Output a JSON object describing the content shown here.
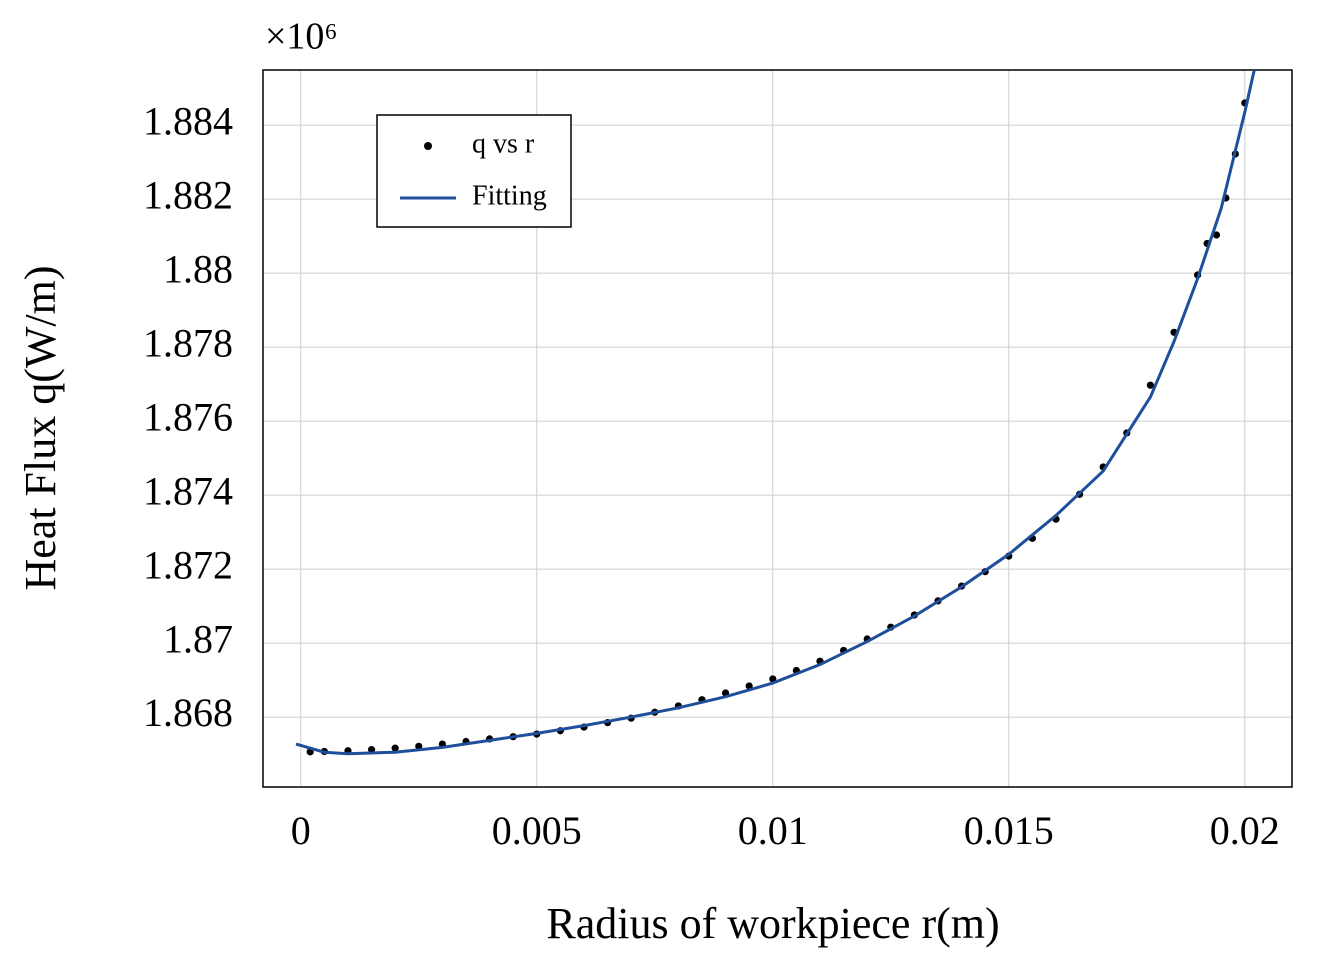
{
  "chart_data": {
    "type": "scatter",
    "y_multiplier": "×10⁶",
    "xlabel": "Radius of workpiece r(m)",
    "ylabel": "Heat Flux q(W/m)",
    "xlim": [
      -0.0008,
      0.021
    ],
    "ylim": [
      1.86611,
      1.88549
    ],
    "xticks": [
      0,
      0.005,
      0.01,
      0.015,
      0.02
    ],
    "yticks": [
      1.868,
      1.87,
      1.872,
      1.874,
      1.876,
      1.878,
      1.88,
      1.882,
      1.884
    ],
    "grid": true,
    "legend": "upper left",
    "series": [
      {
        "name": "q vs r",
        "type": "scatter",
        "color": "#000000",
        "x": [
          0.0002,
          0.0005,
          0.001,
          0.0015,
          0.002,
          0.0025,
          0.003,
          0.0035,
          0.004,
          0.0045,
          0.005,
          0.0055,
          0.006,
          0.0065,
          0.007,
          0.0075,
          0.008,
          0.0085,
          0.009,
          0.0095,
          0.01,
          0.0105,
          0.011,
          0.0115,
          0.012,
          0.0125,
          0.013,
          0.0135,
          0.014,
          0.0145,
          0.015,
          0.0155,
          0.016,
          0.0165,
          0.017,
          0.0175,
          0.018,
          0.0185,
          0.019,
          0.0192,
          0.0194,
          0.0196,
          0.0198,
          0.02
        ],
        "values": [
          1.86706,
          1.86707,
          1.86709,
          1.86712,
          1.86716,
          1.86721,
          1.86727,
          1.86734,
          1.86741,
          1.86747,
          1.86754,
          1.86763,
          1.86773,
          1.86785,
          1.86797,
          1.86813,
          1.8683,
          1.86847,
          1.86865,
          1.86884,
          1.86903,
          1.86926,
          1.86951,
          1.8698,
          1.87011,
          1.87043,
          1.87076,
          1.87114,
          1.87154,
          1.87193,
          1.87235,
          1.87283,
          1.87335,
          1.87402,
          1.87476,
          1.87568,
          1.87697,
          1.8784,
          1.87995,
          1.8808,
          1.88103,
          1.88203,
          1.88322,
          1.8846
        ]
      },
      {
        "name": "Fitting",
        "type": "line",
        "color": "#1f4e9a",
        "x": [
          -0.0001,
          0.0005,
          0.001,
          0.002,
          0.003,
          0.004,
          0.005,
          0.006,
          0.007,
          0.008,
          0.009,
          0.01,
          0.011,
          0.012,
          0.013,
          0.014,
          0.015,
          0.016,
          0.017,
          0.018,
          0.0185,
          0.019,
          0.0195,
          0.02,
          0.0202
        ],
        "values": [
          1.86727,
          1.86705,
          1.86701,
          1.86705,
          1.86718,
          1.86737,
          1.86756,
          1.86777,
          1.868,
          1.86825,
          1.86855,
          1.86892,
          1.86942,
          1.87004,
          1.87073,
          1.87152,
          1.8724,
          1.87345,
          1.87465,
          1.87665,
          1.87815,
          1.87985,
          1.88175,
          1.88435,
          1.88549
        ]
      }
    ]
  }
}
